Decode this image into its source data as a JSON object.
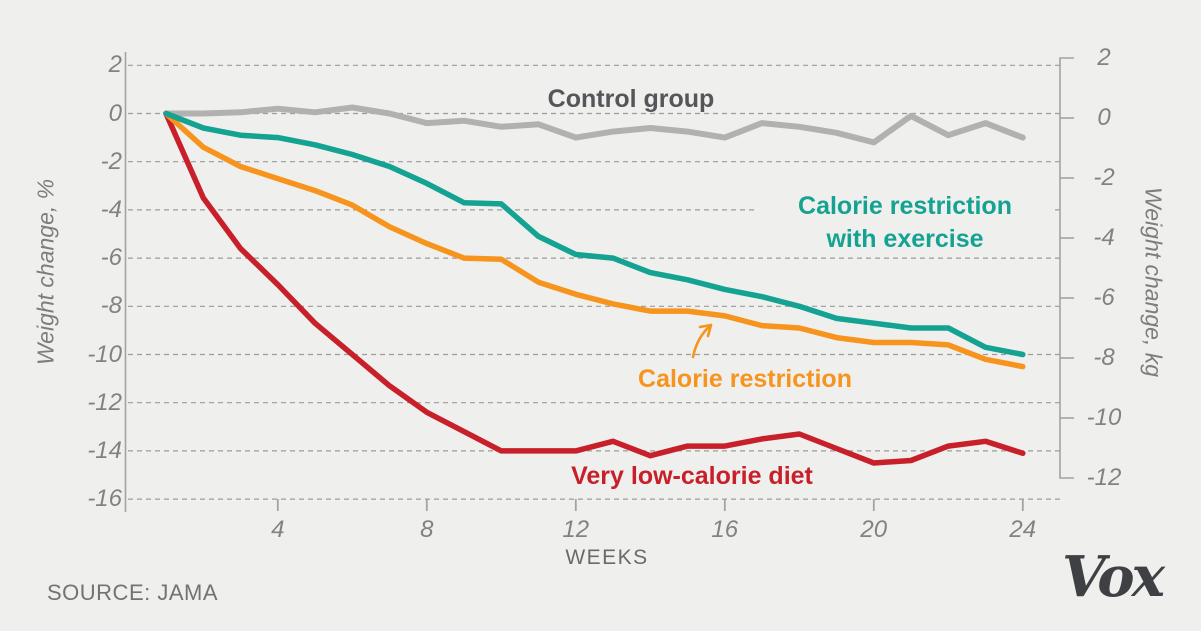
{
  "page": {
    "source": "SOURCE: JAMA",
    "logo": "Vox"
  },
  "colors": {
    "background": "#efefed",
    "gridline": "#9c9c9c",
    "axis": "#a3a3a1",
    "tick_text": "#828282",
    "control_line": "#b1b1af",
    "control_text": "#56565a",
    "cr_exercise": "#14a292",
    "calorie_restriction": "#f7941e",
    "vlcd": "#c8202a"
  },
  "chart_data": {
    "type": "line",
    "xlabel": "WEEKS",
    "ylabel_left": "Weight change, %",
    "ylabel_right": "Weight change, kg",
    "x_range_weeks": [
      1,
      24
    ],
    "x_ticks": [
      4,
      8,
      12,
      16,
      20,
      24
    ],
    "y_ticks_left_percent": [
      2,
      0,
      -2,
      -4,
      -6,
      -8,
      -10,
      -12,
      -14,
      -16
    ],
    "y_ticks_right_kg": [
      2,
      0,
      -2,
      -4,
      -6,
      -8,
      -10,
      -12
    ],
    "ylim_left_percent": [
      2,
      -16
    ],
    "ylim_right_kg": [
      2,
      -12
    ],
    "grid": true,
    "x": [
      1,
      2,
      3,
      4,
      5,
      6,
      7,
      8,
      9,
      10,
      11,
      12,
      13,
      14,
      15,
      16,
      17,
      18,
      19,
      20,
      21,
      22,
      23,
      24
    ],
    "series": [
      {
        "name": "Control group",
        "color": "#b1b1af",
        "values": [
          0,
          0,
          0.05,
          0.2,
          0.05,
          0.25,
          0,
          -0.4,
          -0.3,
          -0.55,
          -0.45,
          -1.0,
          -0.75,
          -0.6,
          -0.75,
          -1.0,
          -0.4,
          -0.55,
          -0.8,
          -1.2,
          -0.1,
          -0.9,
          -0.4,
          -1.0
        ]
      },
      {
        "name": "Very low-calorie diet",
        "color": "#c8202a",
        "values": [
          0,
          -3.5,
          -5.6,
          -7.1,
          -8.7,
          -10.0,
          -11.3,
          -12.4,
          -13.2,
          -14.0,
          -14.0,
          -14.0,
          -13.6,
          -14.2,
          -13.8,
          -13.8,
          -13.5,
          -13.3,
          -13.9,
          -14.5,
          -14.4,
          -13.8,
          -13.6,
          -14.1
        ]
      },
      {
        "name": "Calorie restriction",
        "color": "#f7941e",
        "values": [
          0,
          -1.4,
          -2.2,
          -2.7,
          -3.2,
          -3.8,
          -4.7,
          -5.4,
          -6.0,
          -6.05,
          -7.0,
          -7.5,
          -7.9,
          -8.2,
          -8.2,
          -8.4,
          -8.8,
          -8.9,
          -9.3,
          -9.5,
          -9.5,
          -9.6,
          -10.2,
          -10.5
        ]
      },
      {
        "name": "Calorie restriction with exercise",
        "color": "#14a292",
        "values": [
          0,
          -0.6,
          -0.9,
          -1.0,
          -1.3,
          -1.7,
          -2.2,
          -2.9,
          -3.7,
          -3.75,
          -5.1,
          -5.85,
          -6.0,
          -6.6,
          -6.9,
          -7.3,
          -7.6,
          -8.0,
          -8.5,
          -8.7,
          -8.9,
          -8.9,
          -9.7,
          -10.0
        ]
      }
    ],
    "annotations": {
      "control": "Control group",
      "cr_exercise_line1": "Calorie restriction",
      "cr_exercise_line2": "with exercise",
      "calorie_restriction": "Calorie restriction",
      "vlcd": "Very low-calorie diet"
    }
  }
}
